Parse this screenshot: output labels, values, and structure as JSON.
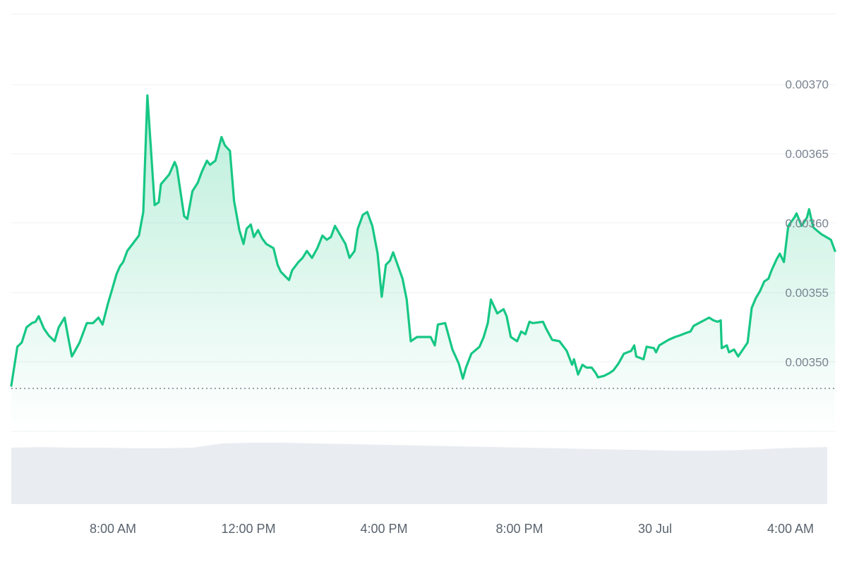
{
  "chart_data": {
    "type": "area",
    "colors": {
      "line": "#16c784",
      "volume": "#e9ecf1",
      "grid": "#eef0f3",
      "baseline": "#6b7280",
      "tick_text": "#7a8491"
    },
    "y_ticks": [
      {
        "value": 0.0037,
        "label": "0.00370"
      },
      {
        "value": 0.00365,
        "label": "0.00365"
      },
      {
        "value": 0.0036,
        "label": "0.00360"
      },
      {
        "value": 0.00355,
        "label": "0.00355"
      },
      {
        "value": 0.0035,
        "label": "0.00350"
      }
    ],
    "x_ticks": [
      {
        "hours": 4.8,
        "label": "8:00 AM"
      },
      {
        "hours": 8.8,
        "label": "12:00 PM"
      },
      {
        "hours": 12.8,
        "label": "4:00 PM"
      },
      {
        "hours": 16.8,
        "label": "8:00 PM"
      },
      {
        "hours": 20.8,
        "label": "30 Jul"
      },
      {
        "hours": 24.8,
        "label": "4:00 AM"
      }
    ],
    "x_range_hours": [
      2.9,
      27.1
    ],
    "ylim": [
      0.0034,
      0.003775
    ],
    "baseline_value": 0.003481,
    "grid": true,
    "series": [
      {
        "points": [
          [
            0,
            0.003483
          ],
          [
            0.25,
            0.003511
          ],
          [
            0.43,
            0.003514
          ],
          [
            0.63,
            0.003525
          ],
          [
            0.85,
            0.003528
          ],
          [
            1.0,
            0.003529
          ],
          [
            1.13,
            0.003533
          ],
          [
            1.35,
            0.003524
          ],
          [
            1.55,
            0.003519
          ],
          [
            1.79,
            0.003515
          ],
          [
            1.96,
            0.003525
          ],
          [
            2.2,
            0.003532
          ],
          [
            2.37,
            0.003516
          ],
          [
            2.5,
            0.003504
          ],
          [
            2.6,
            0.003507
          ],
          [
            2.82,
            0.003514
          ],
          [
            3.12,
            0.003528
          ],
          [
            3.38,
            0.003528
          ],
          [
            3.6,
            0.003532
          ],
          [
            3.77,
            0.003527
          ],
          [
            3.99,
            0.003542
          ],
          [
            4.16,
            0.003552
          ],
          [
            4.34,
            0.003563
          ],
          [
            4.49,
            0.003569
          ],
          [
            4.62,
            0.003572
          ],
          [
            4.79,
            0.00358
          ],
          [
            5.14,
            0.003588
          ],
          [
            5.27,
            0.003591
          ],
          [
            5.45,
            0.003608
          ],
          [
            5.62,
            0.003692
          ],
          [
            5.92,
            0.003613
          ],
          [
            6.09,
            0.003615
          ],
          [
            6.18,
            0.003628
          ],
          [
            6.52,
            0.003635
          ],
          [
            6.75,
            0.003644
          ],
          [
            6.84,
            0.00364
          ],
          [
            7.14,
            0.003605
          ],
          [
            7.27,
            0.003603
          ],
          [
            7.48,
            0.003623
          ],
          [
            7.7,
            0.003629
          ],
          [
            7.87,
            0.003637
          ],
          [
            8.08,
            0.003645
          ],
          [
            8.21,
            0.003642
          ],
          [
            8.43,
            0.003645
          ],
          [
            8.68,
            0.003662
          ],
          [
            8.82,
            0.003656
          ],
          [
            9.03,
            0.003652
          ],
          [
            9.2,
            0.003616
          ],
          [
            9.42,
            0.003595
          ],
          [
            9.59,
            0.003585
          ],
          [
            9.72,
            0.003596
          ],
          [
            9.89,
            0.003599
          ],
          [
            10.02,
            0.00359
          ],
          [
            10.19,
            0.003595
          ],
          [
            10.36,
            0.003589
          ],
          [
            10.53,
            0.003585
          ],
          [
            10.83,
            0.003582
          ],
          [
            11.0,
            0.00357
          ],
          [
            11.13,
            0.003565
          ],
          [
            11.3,
            0.003562
          ],
          [
            11.47,
            0.003559
          ],
          [
            11.6,
            0.003566
          ],
          [
            11.86,
            0.003572
          ],
          [
            12.03,
            0.003575
          ],
          [
            12.21,
            0.00358
          ],
          [
            12.42,
            0.003575
          ],
          [
            12.64,
            0.003582
          ],
          [
            12.85,
            0.003591
          ],
          [
            13.03,
            0.003588
          ],
          [
            13.2,
            0.00359
          ],
          [
            13.37,
            0.003598
          ],
          [
            13.8,
            0.003585
          ],
          [
            13.97,
            0.003575
          ],
          [
            14.18,
            0.00358
          ],
          [
            14.31,
            0.003596
          ],
          [
            14.52,
            0.003606
          ],
          [
            14.7,
            0.003608
          ],
          [
            14.91,
            0.003598
          ],
          [
            15.13,
            0.003578
          ],
          [
            15.3,
            0.003547
          ],
          [
            15.47,
            0.00357
          ],
          [
            15.64,
            0.003573
          ],
          [
            15.77,
            0.003579
          ],
          [
            16.16,
            0.00356
          ],
          [
            16.33,
            0.003545
          ],
          [
            16.5,
            0.003515
          ],
          [
            16.76,
            0.003518
          ],
          [
            16.93,
            0.003518
          ],
          [
            17.32,
            0.003518
          ],
          [
            17.49,
            0.003512
          ],
          [
            17.62,
            0.003527
          ],
          [
            17.92,
            0.003528
          ],
          [
            18.22,
            0.003509
          ],
          [
            18.48,
            0.003499
          ],
          [
            18.65,
            0.003488
          ],
          [
            18.78,
            0.003496
          ],
          [
            19.0,
            0.003506
          ],
          [
            19.34,
            0.003511
          ],
          [
            19.51,
            0.003518
          ],
          [
            19.68,
            0.003528
          ],
          [
            19.81,
            0.003545
          ],
          [
            20.07,
            0.003535
          ],
          [
            20.33,
            0.003538
          ],
          [
            20.46,
            0.003533
          ],
          [
            20.63,
            0.003518
          ],
          [
            20.89,
            0.003515
          ],
          [
            21.06,
            0.003522
          ],
          [
            21.23,
            0.00352
          ],
          [
            21.4,
            0.003529
          ],
          [
            21.53,
            0.003528
          ],
          [
            21.96,
            0.003529
          ],
          [
            22.09,
            0.003524
          ],
          [
            22.34,
            0.003516
          ],
          [
            22.64,
            0.003515
          ],
          [
            22.94,
            0.003508
          ],
          [
            23.16,
            0.003498
          ],
          [
            23.24,
            0.003502
          ],
          [
            23.41,
            0.003491
          ],
          [
            23.59,
            0.003498
          ],
          [
            23.76,
            0.003496
          ],
          [
            23.97,
            0.003496
          ],
          [
            24.14,
            0.003492
          ],
          [
            24.23,
            0.003489
          ],
          [
            24.48,
            0.00349
          ],
          [
            24.7,
            0.003492
          ],
          [
            24.87,
            0.003494
          ],
          [
            25.08,
            0.003499
          ],
          [
            25.3,
            0.003506
          ],
          [
            25.6,
            0.003508
          ],
          [
            25.73,
            0.003512
          ],
          [
            25.81,
            0.003504
          ],
          [
            26.11,
            0.003502
          ],
          [
            26.24,
            0.003511
          ],
          [
            26.54,
            0.00351
          ],
          [
            26.63,
            0.003507
          ],
          [
            26.76,
            0.003512
          ],
          [
            27.15,
            0.003516
          ],
          [
            27.41,
            0.003518
          ],
          [
            27.58,
            0.003519
          ],
          [
            27.88,
            0.003521
          ],
          [
            28.05,
            0.003522
          ],
          [
            28.18,
            0.003526
          ],
          [
            28.39,
            0.003528
          ],
          [
            28.61,
            0.00353
          ],
          [
            28.82,
            0.003532
          ],
          [
            29.0,
            0.00353
          ],
          [
            29.17,
            0.003529
          ],
          [
            29.3,
            0.00353
          ],
          [
            29.34,
            0.00351
          ],
          [
            29.55,
            0.003512
          ],
          [
            29.64,
            0.003507
          ],
          [
            29.85,
            0.003509
          ],
          [
            30.02,
            0.003504
          ],
          [
            30.41,
            0.003514
          ],
          [
            30.58,
            0.003539
          ],
          [
            30.75,
            0.003546
          ],
          [
            30.92,
            0.003551
          ],
          [
            31.1,
            0.003558
          ],
          [
            31.27,
            0.00356
          ],
          [
            31.4,
            0.003566
          ],
          [
            31.61,
            0.003574
          ],
          [
            31.74,
            0.003578
          ],
          [
            31.91,
            0.003572
          ],
          [
            32.09,
            0.003598
          ],
          [
            32.34,
            0.003604
          ],
          [
            32.43,
            0.003607
          ],
          [
            32.64,
            0.003598
          ],
          [
            32.86,
            0.003604
          ],
          [
            32.95,
            0.00361
          ],
          [
            33.12,
            0.003597
          ],
          [
            33.25,
            0.003595
          ],
          [
            33.46,
            0.003592
          ],
          [
            33.85,
            0.003588
          ],
          [
            34.02,
            0.00358
          ]
        ]
      }
    ]
  },
  "volume_note": ""
}
